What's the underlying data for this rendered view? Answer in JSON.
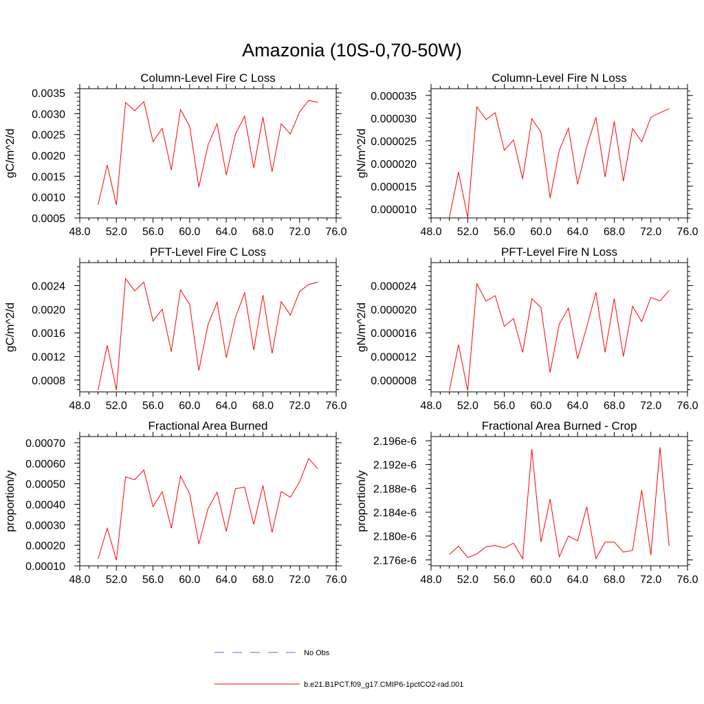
{
  "figure": {
    "title": "Amazonia (10S-0,70-50W)"
  },
  "legend": {
    "entries": [
      {
        "label": "No Obs",
        "color": "#6666cc",
        "style": "dashed"
      },
      {
        "label": "b.e21.B1PCT.f09_g17.CMIP6-1pctCO2-rad.001",
        "color": "#ff0000",
        "style": "solid"
      }
    ]
  },
  "chart_data": [
    {
      "type": "line",
      "title": "Column-Level Fire C Loss",
      "ylabel": "gC/m^2/d",
      "xlim": [
        48,
        76
      ],
      "xticks": [
        "48.0",
        "52.0",
        "56.0",
        "60.0",
        "64.0",
        "68.0",
        "72.0",
        "76.0"
      ],
      "ylim": [
        0.0005,
        0.0036
      ],
      "yticks": [
        "0.0005",
        "0.0010",
        "0.0015",
        "0.0020",
        "0.0025",
        "0.0030",
        "0.0035"
      ],
      "x": [
        50,
        51,
        52,
        53,
        54,
        55,
        56,
        57,
        58,
        59,
        60,
        61,
        62,
        63,
        64,
        65,
        66,
        67,
        68,
        69,
        70,
        71,
        72,
        73,
        74
      ],
      "series": [
        {
          "color": "#ff0000",
          "values": [
            0.00081,
            0.00177,
            0.00081,
            0.00327,
            0.00307,
            0.00329,
            0.00233,
            0.00265,
            0.00165,
            0.0031,
            0.0027,
            0.00124,
            0.00224,
            0.00276,
            0.00153,
            0.00251,
            0.00294,
            0.0017,
            0.00292,
            0.00161,
            0.00276,
            0.00251,
            0.00304,
            0.00332,
            0.00327
          ]
        }
      ]
    },
    {
      "type": "line",
      "title": "Column-Level Fire N Loss",
      "ylabel": "gN/m^2/d",
      "xlim": [
        48,
        76
      ],
      "xticks": [
        "48.0",
        "52.0",
        "56.0",
        "60.0",
        "64.0",
        "68.0",
        "72.0",
        "76.0"
      ],
      "ylim": [
        8e-06,
        3.65e-05
      ],
      "yticks": [
        "0.000010",
        "0.000015",
        "0.000020",
        "0.000025",
        "0.000030",
        "0.000035"
      ],
      "x": [
        50,
        51,
        52,
        53,
        54,
        55,
        56,
        57,
        58,
        59,
        60,
        61,
        62,
        63,
        64,
        65,
        66,
        67,
        68,
        69,
        70,
        71,
        72,
        73,
        74
      ],
      "series": [
        {
          "color": "#ff0000",
          "values": [
            8.1e-06,
            1.81e-05,
            8.1e-06,
            3.25e-05,
            2.97e-05,
            3.12e-05,
            2.29e-05,
            2.52e-05,
            1.66e-05,
            2.99e-05,
            2.69e-05,
            1.24e-05,
            2.29e-05,
            2.78e-05,
            1.54e-05,
            2.37e-05,
            3.02e-05,
            1.7e-05,
            2.93e-05,
            1.61e-05,
            2.77e-05,
            2.48e-05,
            3.02e-05,
            3.12e-05,
            3.21e-05
          ]
        }
      ]
    },
    {
      "type": "line",
      "title": "PFT-Level Fire C Loss",
      "ylabel": "gC/m^2/d",
      "xlim": [
        48,
        76
      ],
      "xticks": [
        "48.0",
        "52.0",
        "56.0",
        "60.0",
        "64.0",
        "68.0",
        "72.0",
        "76.0"
      ],
      "ylim": [
        0.0006,
        0.00279
      ],
      "yticks": [
        "0.0008",
        "0.0012",
        "0.0016",
        "0.0020",
        "0.0024"
      ],
      "x": [
        50,
        51,
        52,
        53,
        54,
        55,
        56,
        57,
        58,
        59,
        60,
        61,
        62,
        63,
        64,
        65,
        66,
        67,
        68,
        69,
        70,
        71,
        72,
        73,
        74
      ],
      "series": [
        {
          "color": "#ff0000",
          "values": [
            0.00063,
            0.00139,
            0.00063,
            0.00252,
            0.00231,
            0.00246,
            0.0018,
            0.002,
            0.00128,
            0.00233,
            0.00208,
            0.00096,
            0.00174,
            0.00212,
            0.00118,
            0.00186,
            0.00228,
            0.00131,
            0.00224,
            0.00125,
            0.00213,
            0.0019,
            0.0023,
            0.00242,
            0.00246
          ]
        }
      ]
    },
    {
      "type": "line",
      "title": "PFT-Level Fire N Loss",
      "ylabel": "gN/m^2/d",
      "xlim": [
        48,
        76
      ],
      "xticks": [
        "48.0",
        "52.0",
        "56.0",
        "60.0",
        "64.0",
        "68.0",
        "72.0",
        "76.0"
      ],
      "ylim": [
        6e-06,
        2.79e-05
      ],
      "yticks": [
        "0.000008",
        "0.000012",
        "0.000016",
        "0.000020",
        "0.000024"
      ],
      "x": [
        50,
        51,
        52,
        53,
        54,
        55,
        56,
        57,
        58,
        59,
        60,
        61,
        62,
        63,
        64,
        65,
        66,
        67,
        68,
        69,
        70,
        71,
        72,
        73,
        74
      ],
      "series": [
        {
          "color": "#ff0000",
          "values": [
            6.2e-06,
            1.4e-05,
            6.2e-06,
            2.43e-05,
            2.14e-05,
            2.23e-05,
            1.71e-05,
            1.84e-05,
            1.27e-05,
            2.18e-05,
            2.03e-05,
            9.3e-06,
            1.75e-05,
            2.02e-05,
            1.16e-05,
            1.7e-05,
            2.29e-05,
            1.27e-05,
            2.18e-05,
            1.2e-05,
            2.05e-05,
            1.79e-05,
            2.2e-05,
            2.14e-05,
            2.32e-05
          ]
        }
      ]
    },
    {
      "type": "line",
      "title": "Fractional Area Burned",
      "ylabel": "proportion/y",
      "xlim": [
        48,
        76
      ],
      "xticks": [
        "48.0",
        "52.0",
        "56.0",
        "60.0",
        "64.0",
        "68.0",
        "72.0",
        "76.0"
      ],
      "ylim": [
        0.0001,
        0.00073
      ],
      "yticks": [
        "0.00010",
        "0.00020",
        "0.00030",
        "0.00040",
        "0.00050",
        "0.00060",
        "0.00070"
      ],
      "x": [
        50,
        51,
        52,
        53,
        54,
        55,
        56,
        57,
        58,
        59,
        60,
        61,
        62,
        63,
        64,
        65,
        66,
        67,
        68,
        69,
        70,
        71,
        72,
        73,
        74
      ],
      "series": [
        {
          "color": "#ff0000",
          "values": [
            0.000133,
            0.000283,
            0.000128,
            0.000533,
            0.00052,
            0.000567,
            0.000388,
            0.000461,
            0.000283,
            0.000538,
            0.000451,
            0.000206,
            0.000378,
            0.000459,
            0.000268,
            0.000476,
            0.000483,
            0.000302,
            0.000492,
            0.000263,
            0.000462,
            0.000434,
            0.000509,
            0.000623,
            0.000573
          ]
        }
      ]
    },
    {
      "type": "line",
      "title": "Fractional Area Burned - Crop",
      "ylabel": "proportion/y",
      "xlim": [
        48,
        76
      ],
      "xticks": [
        "48.0",
        "52.0",
        "56.0",
        "60.0",
        "64.0",
        "68.0",
        "72.0",
        "76.0"
      ],
      "ylim": [
        2.175e-06,
        2.1967e-06
      ],
      "yticks": [
        "2.176e-6",
        "2.180e-6",
        "2.184e-6",
        "2.188e-6",
        "2.192e-6",
        "2.196e-6"
      ],
      "x": [
        50,
        51,
        52,
        53,
        54,
        55,
        56,
        57,
        58,
        59,
        60,
        61,
        62,
        63,
        64,
        65,
        66,
        67,
        68,
        69,
        70,
        71,
        72,
        73,
        74
      ],
      "series": [
        {
          "color": "#ff0000",
          "values": [
            2.1769e-06,
            2.1783e-06,
            2.1764e-06,
            2.177e-06,
            2.1782e-06,
            2.1784e-06,
            2.178e-06,
            2.1788e-06,
            2.1762e-06,
            2.1946e-06,
            2.179e-06,
            2.1862e-06,
            2.1765e-06,
            2.18e-06,
            2.1792e-06,
            2.1849e-06,
            2.1762e-06,
            2.179e-06,
            2.179e-06,
            2.1773e-06,
            2.1776e-06,
            2.1877e-06,
            2.1768e-06,
            2.1949e-06,
            2.1783e-06
          ]
        }
      ]
    }
  ]
}
